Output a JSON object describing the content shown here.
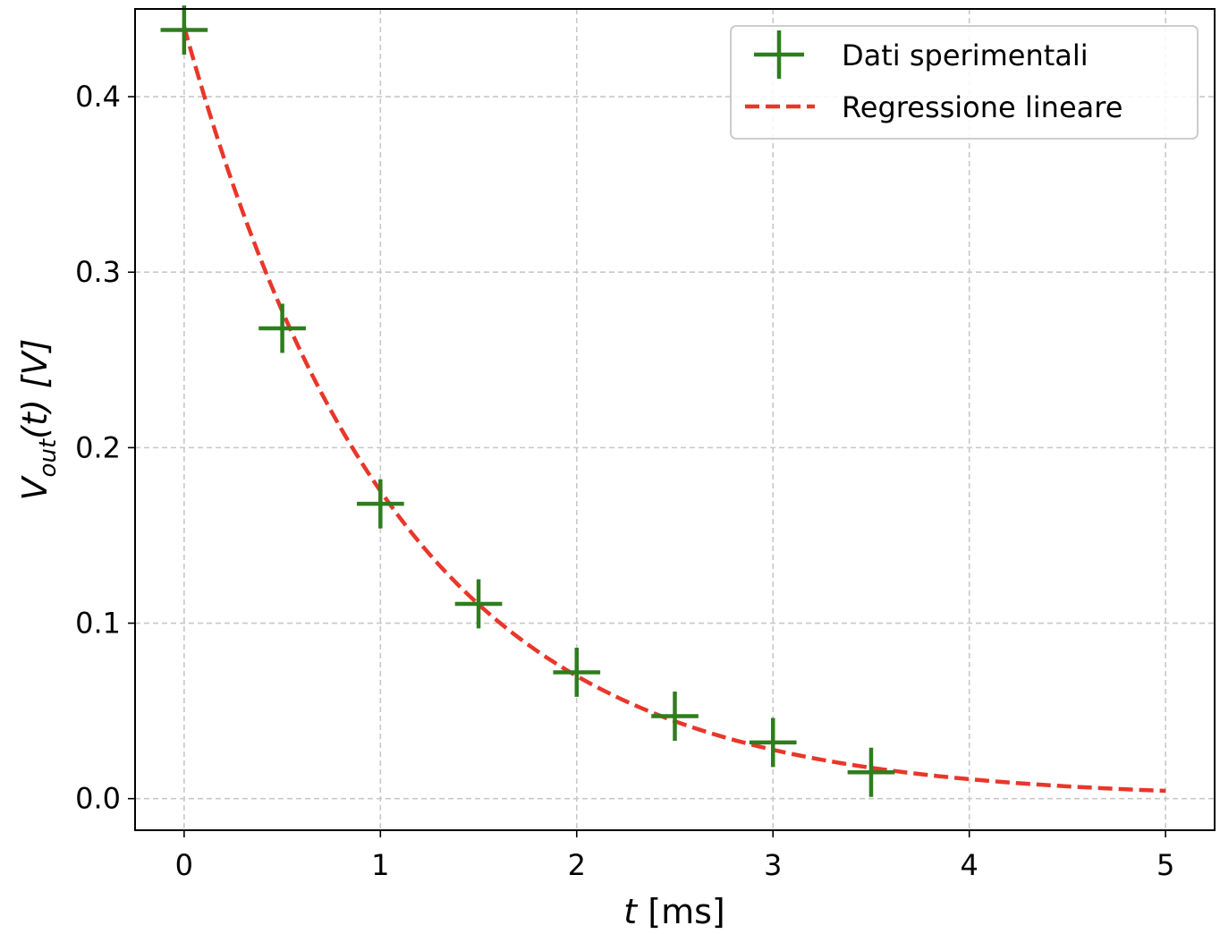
{
  "chart_data": {
    "type": "scatter",
    "title": "",
    "xlabel_italic": "t",
    "xlabel_rest": " [ms]",
    "ylabel_v": "V",
    "ylabel_sub": "out",
    "ylabel_rest": "(t) [V]",
    "xlim": [
      -0.25,
      5.25
    ],
    "ylim": [
      -0.018,
      0.45
    ],
    "xticks": [
      0,
      1,
      2,
      3,
      4,
      5
    ],
    "xtick_labels": [
      "0",
      "1",
      "2",
      "3",
      "4",
      "5"
    ],
    "yticks": [
      0.0,
      0.1,
      0.2,
      0.3,
      0.4
    ],
    "ytick_labels": [
      "0.0",
      "0.1",
      "0.2",
      "0.3",
      "0.4"
    ],
    "grid": true,
    "legend_position": "top-right",
    "series": [
      {
        "name": "Dati sperimentali",
        "kind": "markers",
        "marker": "plus",
        "color": "#2e7d1e",
        "x": [
          0,
          0.5,
          1.0,
          1.5,
          2.0,
          2.5,
          3.0,
          3.5
        ],
        "y": [
          0.438,
          0.268,
          0.168,
          0.111,
          0.072,
          0.047,
          0.032,
          0.015
        ],
        "xerr": 0.12,
        "yerr": 0.014
      },
      {
        "name": "Regressione lineare",
        "kind": "line",
        "style": "dashed",
        "color": "#e8372a",
        "model": "exponential",
        "amplitude": 0.44,
        "decay_per_ms": 0.92,
        "x_range": [
          0,
          5
        ]
      }
    ]
  }
}
